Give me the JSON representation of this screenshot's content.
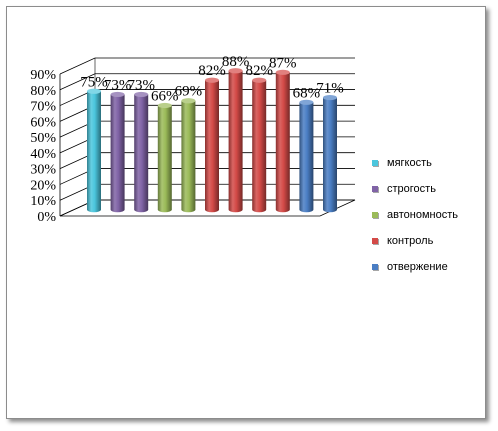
{
  "chart_data": {
    "type": "bar",
    "title": "",
    "xlabel": "",
    "ylabel": "",
    "ylim": [
      0,
      90
    ],
    "y_ticks": [
      "0%",
      "10%",
      "20%",
      "30%",
      "40%",
      "50%",
      "60%",
      "70%",
      "80%",
      "90%"
    ],
    "grid": true,
    "legend_position": "right",
    "legend": [
      {
        "name": "мягкость",
        "color": "#4bc6dd"
      },
      {
        "name": "строгость",
        "color": "#8063a6"
      },
      {
        "name": "автономность",
        "color": "#9bbb59"
      },
      {
        "name": "контроль",
        "color": "#d44a47"
      },
      {
        "name": "отвержение",
        "color": "#4a7ec4"
      }
    ],
    "bars": [
      {
        "value": 75,
        "label": "75%",
        "color": "#4bc6dd"
      },
      {
        "value": 73,
        "label": "73%",
        "color": "#8063a6"
      },
      {
        "value": 73,
        "label": "73%",
        "color": "#8063a6"
      },
      {
        "value": 66,
        "label": "66%",
        "color": "#9bbb59"
      },
      {
        "value": 69,
        "label": "69%",
        "color": "#9bbb59"
      },
      {
        "value": 82,
        "label": "82%",
        "color": "#d44a47"
      },
      {
        "value": 88,
        "label": "88%",
        "color": "#d44a47"
      },
      {
        "value": 82,
        "label": "82%",
        "color": "#d44a47"
      },
      {
        "value": 87,
        "label": "87%",
        "color": "#d44a47"
      },
      {
        "value": 68,
        "label": "68%",
        "color": "#4a7ec4"
      },
      {
        "value": 71,
        "label": "71%",
        "color": "#4a7ec4"
      }
    ]
  }
}
